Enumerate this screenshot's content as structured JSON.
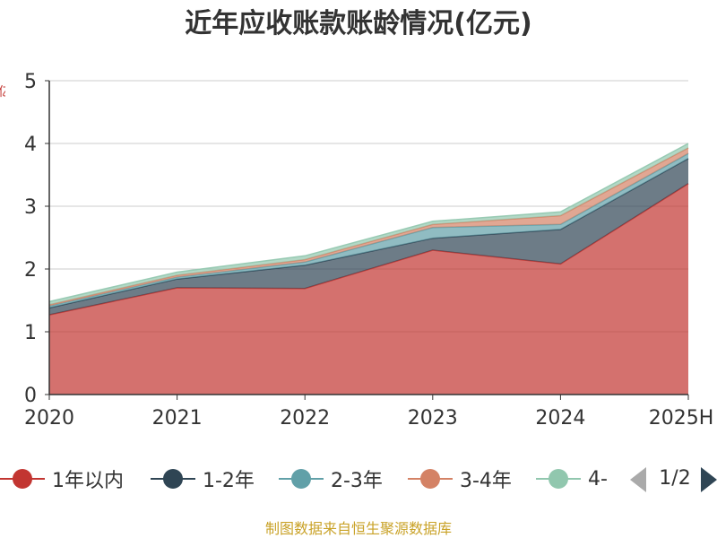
{
  "page": {
    "source_note": "制图数据来自恒生聚源数据库",
    "y_axis_label": "亿元"
  },
  "chart_data": {
    "type": "area",
    "stacked": true,
    "title": "近年应收账款账龄情况(亿元)",
    "xlabel": "",
    "ylabel": "亿元",
    "categories": [
      "2020",
      "2021",
      "2022",
      "2023",
      "2024",
      "2025H"
    ],
    "y_ticks": [
      "0",
      "1",
      "2",
      "3",
      "4",
      "5"
    ],
    "ylim": [
      0,
      5
    ],
    "grid": true,
    "legend_position": "bottom",
    "series": [
      {
        "name": "1年以内",
        "color": "#c23531",
        "values": [
          1.27,
          1.7,
          1.69,
          2.3,
          2.08,
          3.36
        ]
      },
      {
        "name": "1-2年",
        "color": "#2f4554",
        "values": [
          0.11,
          0.14,
          0.37,
          0.19,
          0.55,
          0.4
        ]
      },
      {
        "name": "2-3年",
        "color": "#61a0a8",
        "values": [
          0.03,
          0.03,
          0.05,
          0.17,
          0.08,
          0.08
        ]
      },
      {
        "name": "3-4年",
        "color": "#d48265",
        "values": [
          0.02,
          0.03,
          0.04,
          0.05,
          0.14,
          0.09
        ]
      },
      {
        "name": "4-",
        "color": "#91c7ae",
        "values": [
          0.05,
          0.05,
          0.06,
          0.05,
          0.06,
          0.07
        ]
      }
    ],
    "legend_pager": {
      "page_text": "1/2"
    }
  }
}
